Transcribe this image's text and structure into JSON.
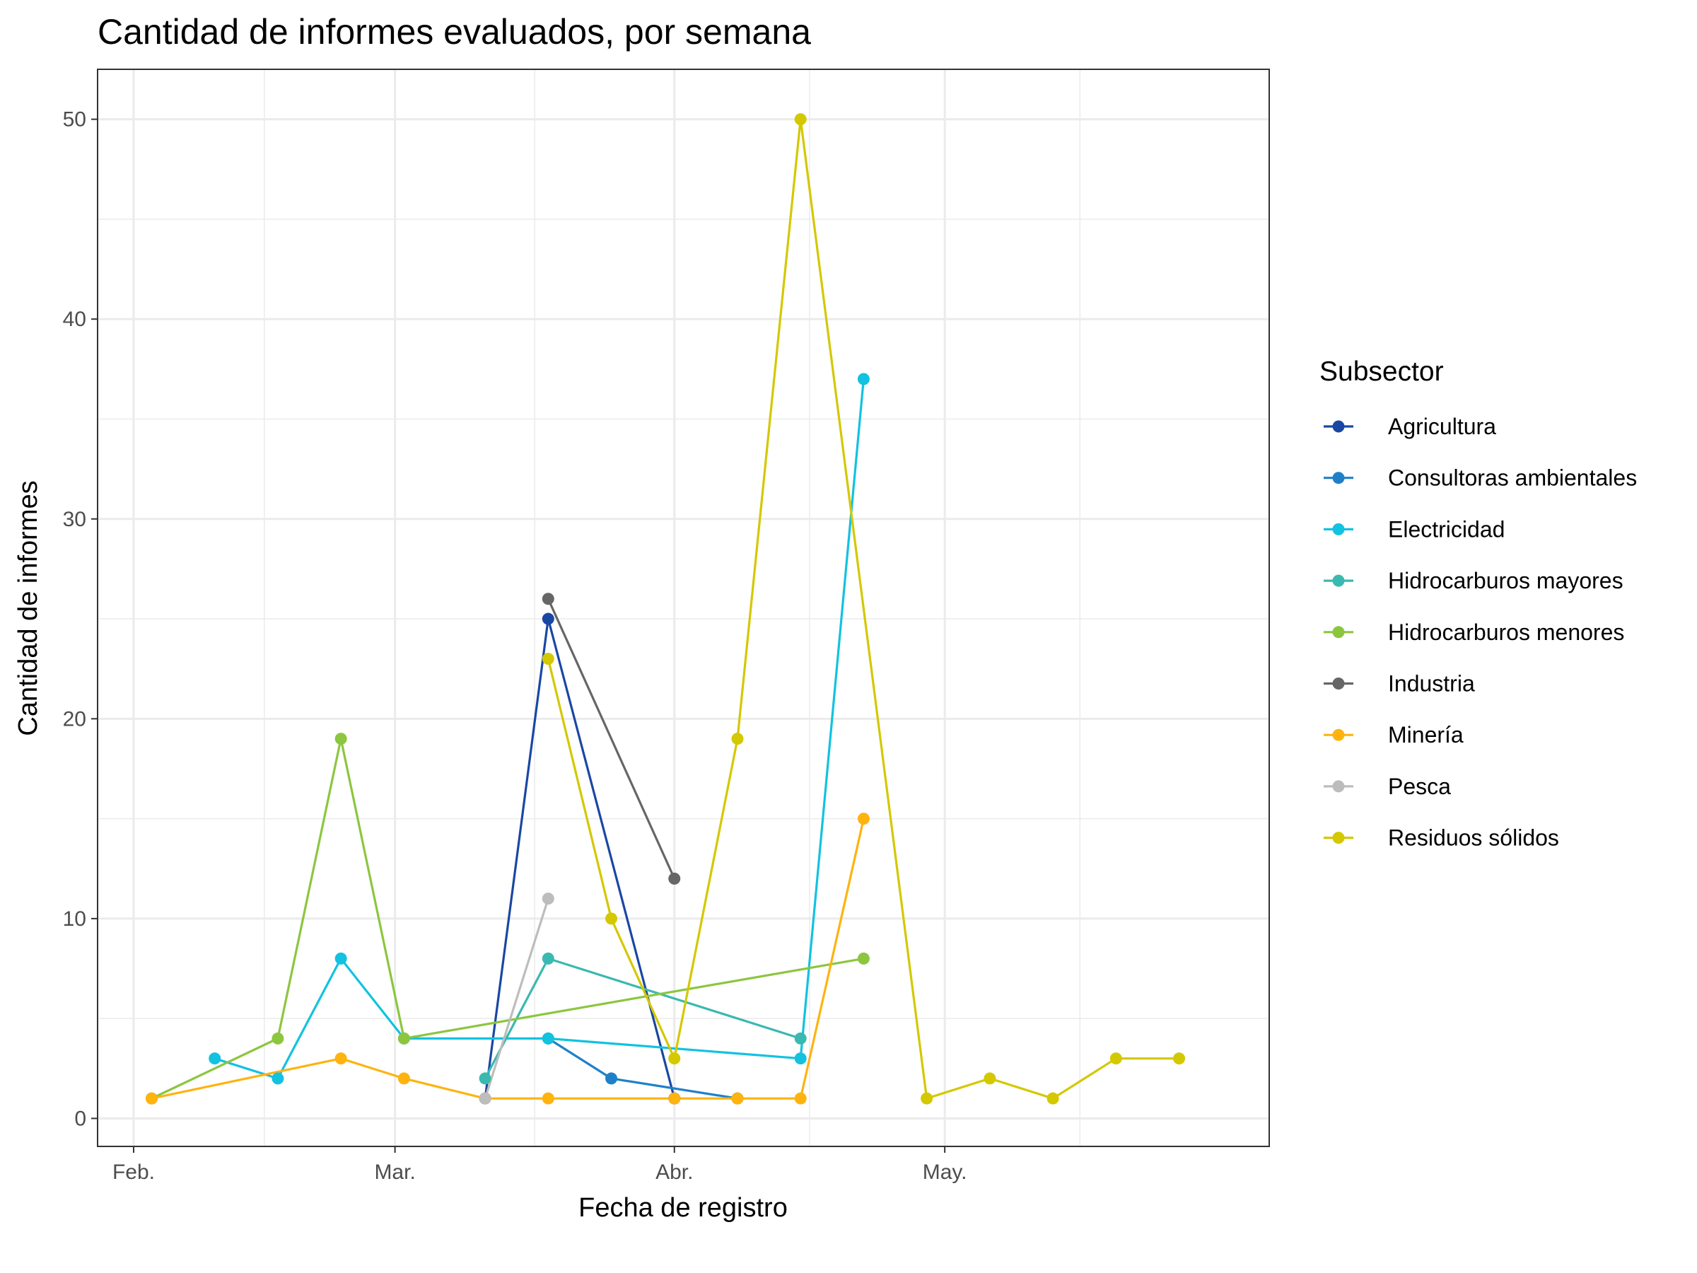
{
  "chart_data": {
    "type": "line",
    "title": "Cantidad de informes evaluados, por semana",
    "xlabel": "Fecha de registro",
    "ylabel": "Cantidad de informes",
    "x_ticks": [
      {
        "date": "2024-02-01",
        "label": "Feb."
      },
      {
        "date": "2024-03-01",
        "label": "Mar."
      },
      {
        "date": "2024-04-01",
        "label": "Abr."
      },
      {
        "date": "2024-05-01",
        "label": "May."
      }
    ],
    "xlim": [
      "2024-01-28",
      "2024-06-06"
    ],
    "y_ticks": [
      0,
      10,
      20,
      30,
      40,
      50
    ],
    "ylim": [
      -1.4,
      52.5
    ],
    "grid": true,
    "legend": {
      "title": "Subsector",
      "position": "right"
    },
    "series": [
      {
        "name": "Agricultura",
        "color": "#1a47a3",
        "points": [
          [
            "2024-03-11",
            1
          ],
          [
            "2024-03-18",
            25
          ],
          [
            "2024-04-01",
            1
          ]
        ]
      },
      {
        "name": "Consultoras ambientales",
        "color": "#1f80c8",
        "points": [
          [
            "2024-03-18",
            4
          ],
          [
            "2024-03-25",
            2
          ],
          [
            "2024-04-08",
            1
          ]
        ]
      },
      {
        "name": "Electricidad",
        "color": "#12c2e0",
        "points": [
          [
            "2024-02-10",
            3
          ],
          [
            "2024-02-17",
            2
          ],
          [
            "2024-02-24",
            8
          ],
          [
            "2024-03-02",
            4
          ],
          [
            "2024-03-18",
            4
          ],
          [
            "2024-04-15",
            3
          ],
          [
            "2024-04-22",
            37
          ]
        ]
      },
      {
        "name": "Hidrocarburos mayores",
        "color": "#3ab9b0",
        "points": [
          [
            "2024-03-11",
            2
          ],
          [
            "2024-03-18",
            8
          ],
          [
            "2024-04-15",
            4
          ]
        ]
      },
      {
        "name": "Hidrocarburos menores",
        "color": "#8cc63f",
        "points": [
          [
            "2024-02-03",
            1
          ],
          [
            "2024-02-17",
            4
          ],
          [
            "2024-02-24",
            19
          ],
          [
            "2024-03-02",
            4
          ],
          [
            "2024-04-22",
            8
          ]
        ]
      },
      {
        "name": "Industria",
        "color": "#666666",
        "points": [
          [
            "2024-03-18",
            26
          ],
          [
            "2024-04-01",
            12
          ]
        ]
      },
      {
        "name": "Minería",
        "color": "#ffb30f",
        "points": [
          [
            "2024-02-03",
            1
          ],
          [
            "2024-02-24",
            3
          ],
          [
            "2024-03-02",
            2
          ],
          [
            "2024-03-11",
            1
          ],
          [
            "2024-03-18",
            1
          ],
          [
            "2024-04-01",
            1
          ],
          [
            "2024-04-08",
            1
          ],
          [
            "2024-04-15",
            1
          ],
          [
            "2024-04-22",
            15
          ]
        ]
      },
      {
        "name": "Pesca",
        "color": "#bdbdbd",
        "points": [
          [
            "2024-03-11",
            1
          ],
          [
            "2024-03-18",
            11
          ]
        ]
      },
      {
        "name": "Residuos sólidos",
        "color": "#d4c800",
        "points": [
          [
            "2024-03-18",
            23
          ],
          [
            "2024-03-25",
            10
          ],
          [
            "2024-04-01",
            3
          ],
          [
            "2024-04-08",
            19
          ],
          [
            "2024-04-15",
            50
          ],
          [
            "2024-04-29",
            1
          ],
          [
            "2024-05-06",
            2
          ],
          [
            "2024-05-13",
            1
          ],
          [
            "2024-05-20",
            3
          ],
          [
            "2024-05-27",
            3
          ]
        ]
      }
    ]
  }
}
